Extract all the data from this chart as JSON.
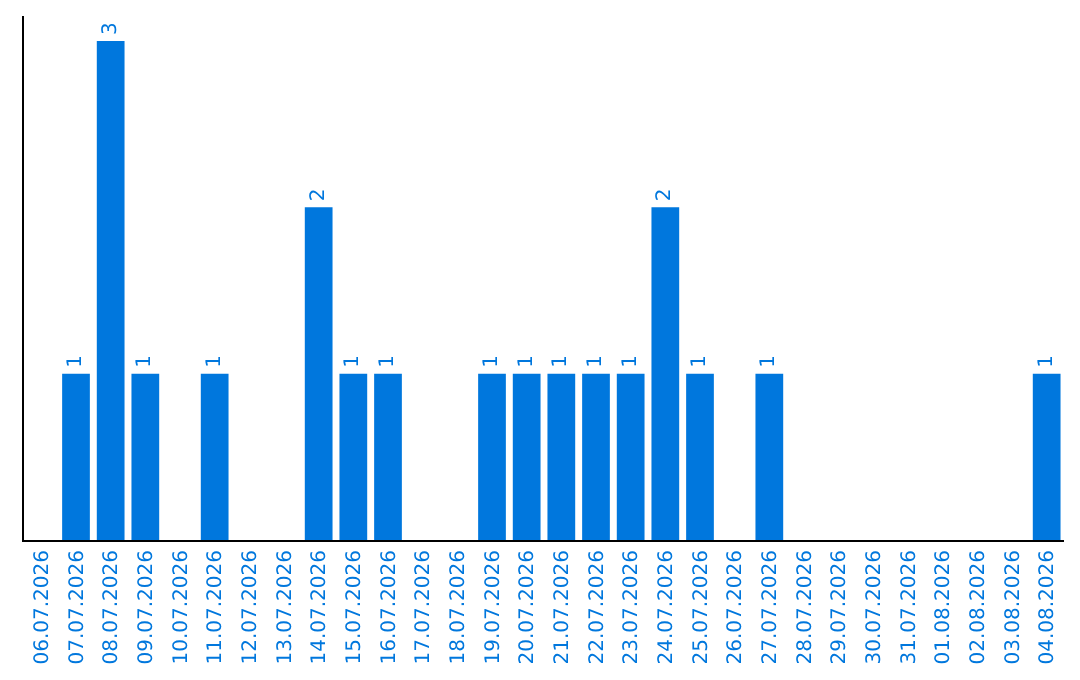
{
  "chart_data": {
    "type": "bar",
    "categories": [
      "06.07.2026",
      "07.07.2026",
      "08.07.2026",
      "09.07.2026",
      "10.07.2026",
      "11.07.2026",
      "12.07.2026",
      "13.07.2026",
      "14.07.2026",
      "15.07.2026",
      "16.07.2026",
      "17.07.2026",
      "18.07.2026",
      "19.07.2026",
      "20.07.2026",
      "21.07.2026",
      "22.07.2026",
      "23.07.2026",
      "24.07.2026",
      "25.07.2026",
      "26.07.2026",
      "27.07.2026",
      "28.07.2026",
      "29.07.2026",
      "30.07.2026",
      "31.07.2026",
      "01.08.2026",
      "02.08.2026",
      "03.08.2026",
      "04.08.2026"
    ],
    "values": [
      0,
      1,
      3,
      1,
      0,
      1,
      0,
      0,
      2,
      1,
      1,
      0,
      0,
      1,
      1,
      1,
      1,
      1,
      2,
      1,
      0,
      1,
      0,
      0,
      0,
      0,
      0,
      0,
      0,
      1
    ],
    "value_labels": [
      null,
      "1",
      "3",
      "1",
      null,
      "1",
      null,
      null,
      "2",
      "1",
      "1",
      null,
      null,
      "1",
      "1",
      "1",
      "1",
      "1",
      "2",
      "1",
      null,
      "1",
      null,
      null,
      null,
      null,
      null,
      null,
      null,
      "1"
    ],
    "color": "#0077dd",
    "ylim": [
      0,
      3.15
    ],
    "tick_labels": "x"
  }
}
